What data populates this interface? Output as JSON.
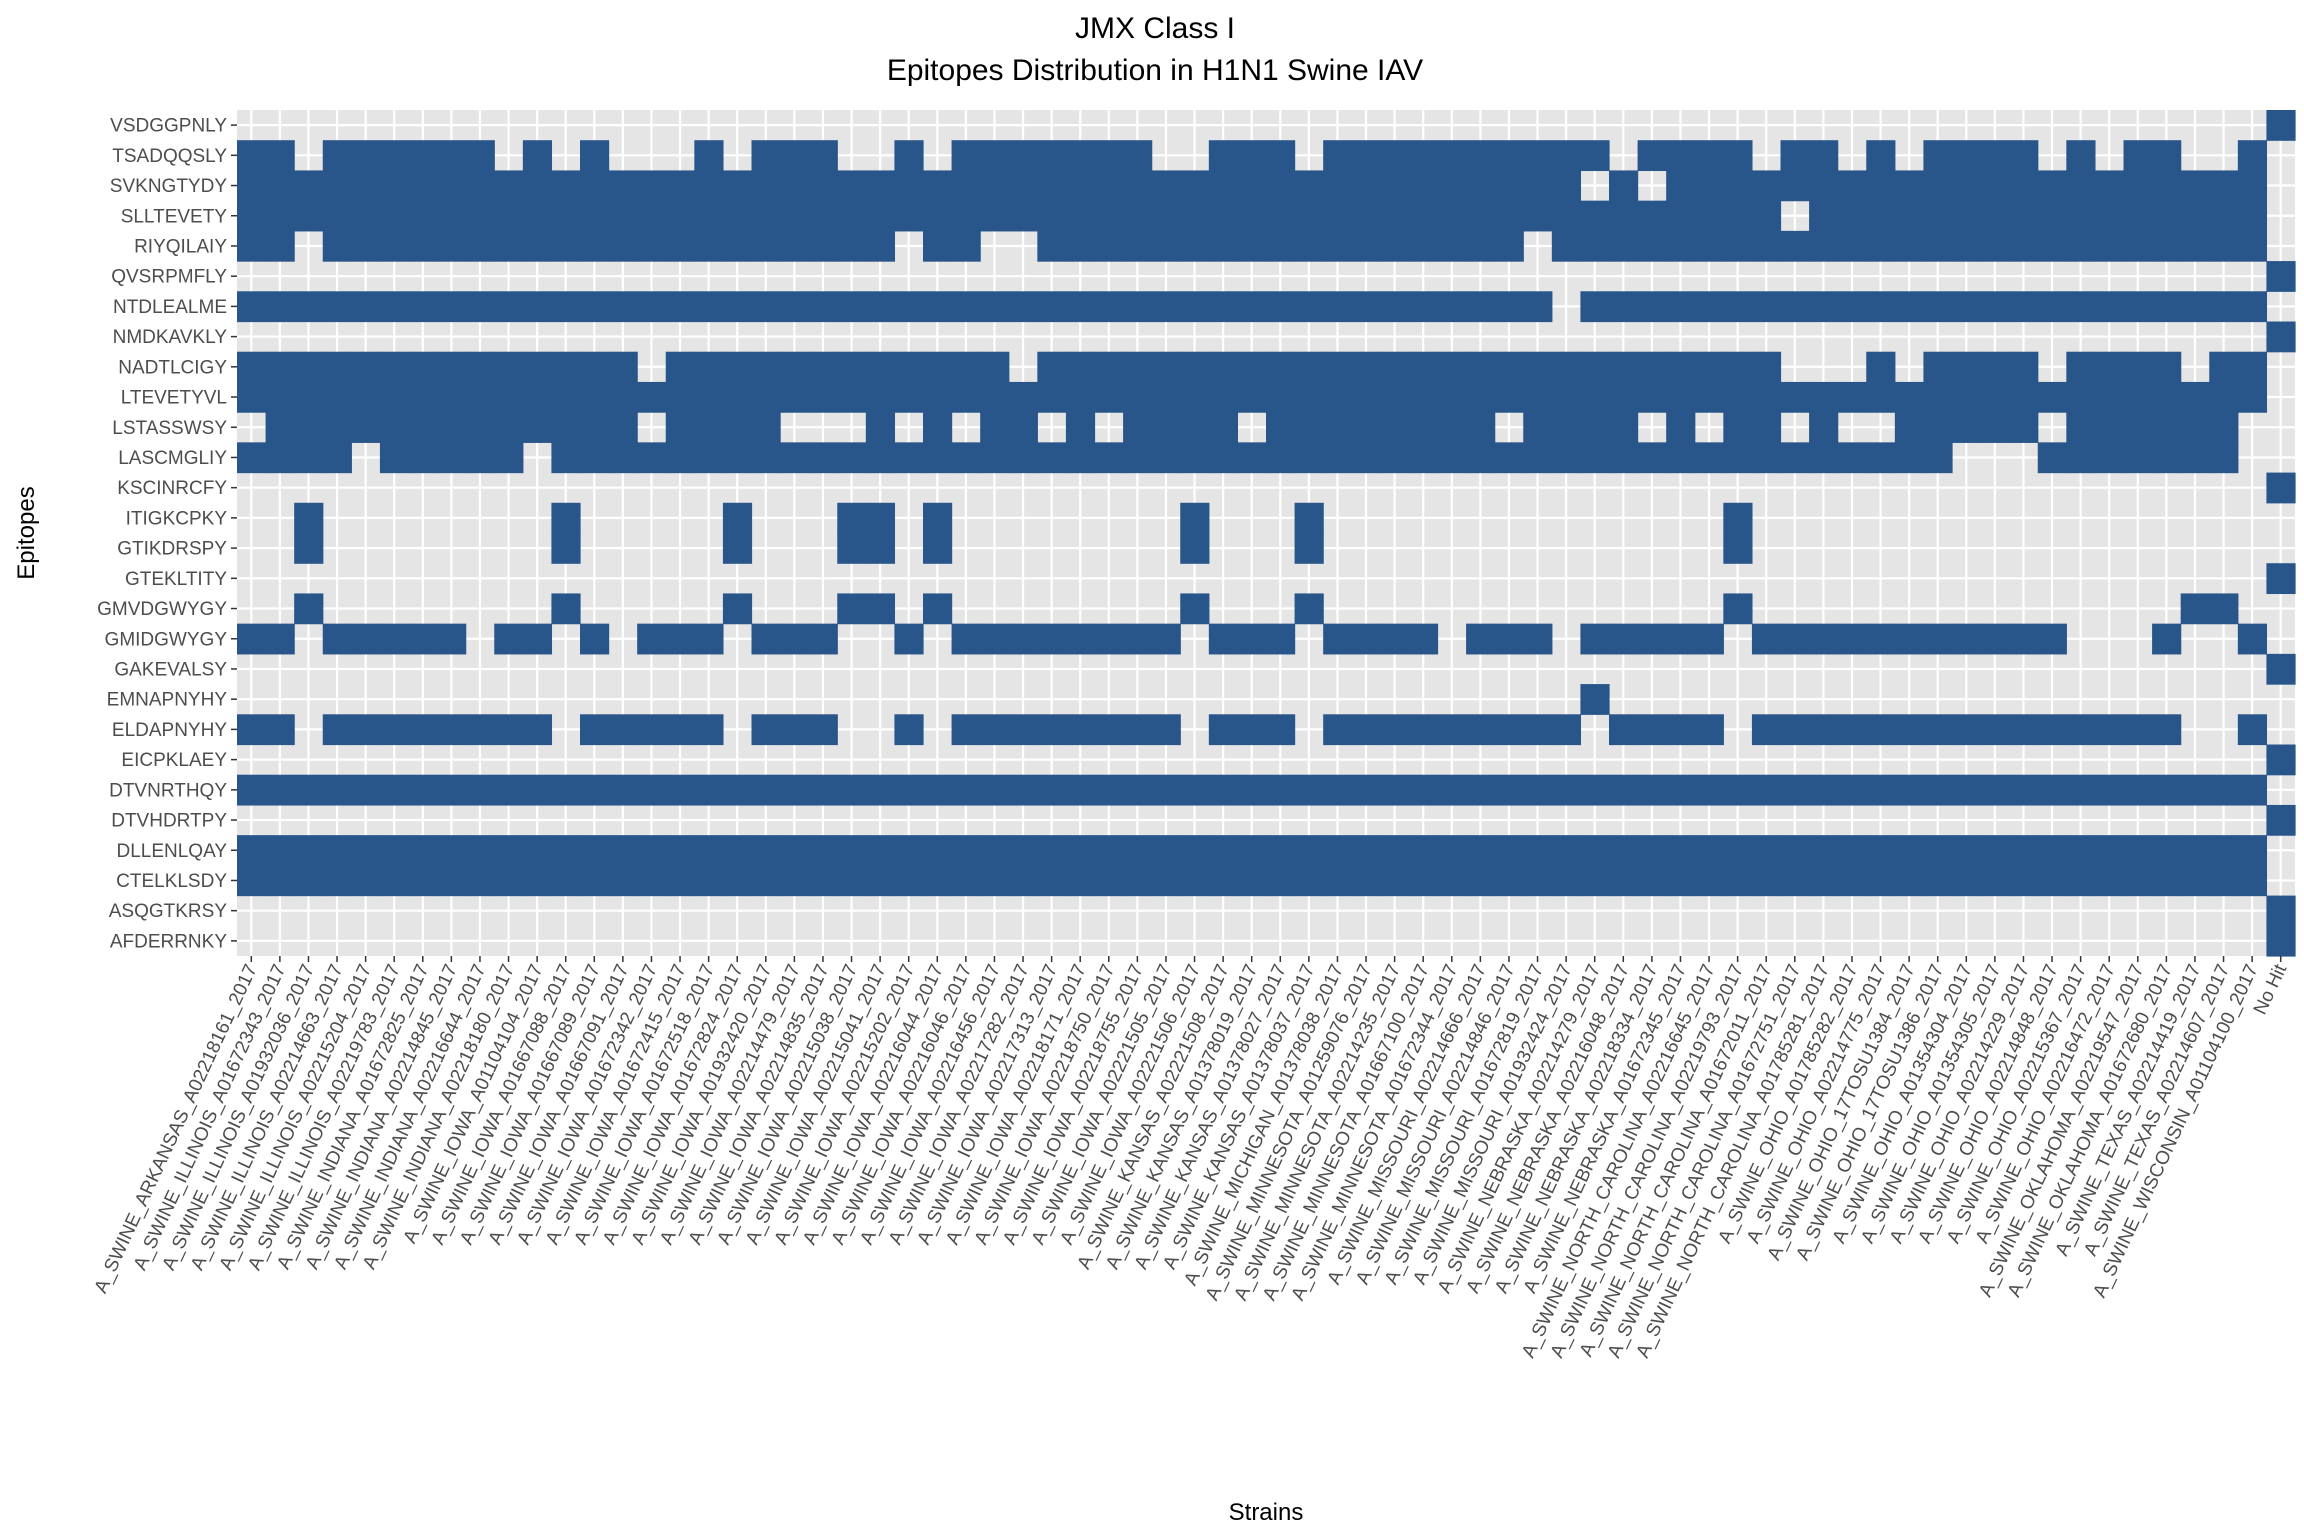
{
  "chart_data": {
    "type": "heatmap",
    "title": "JMX Class I",
    "subtitle": "Epitopes Distribution in H1N1 Swine IAV",
    "xlabel": "Strains",
    "ylabel": "Epitopes",
    "fill_color": "#29568a",
    "panel_color": "#e5e5e5",
    "grid": true,
    "legend": "none",
    "x": [
      "A_SWINE_ARKANSAS_A02218161_2017",
      "A_SWINE_ILLINOIS_A01672343_2017",
      "A_SWINE_ILLINOIS_A01932036_2017",
      "A_SWINE_ILLINOIS_A02214663_2017",
      "A_SWINE_ILLINOIS_A02215204_2017",
      "A_SWINE_ILLINOIS_A02219783_2017",
      "A_SWINE_INDIANA_A01672825_2017",
      "A_SWINE_INDIANA_A02214845_2017",
      "A_SWINE_INDIANA_A02216644_2017",
      "A_SWINE_INDIANA_A02218180_2017",
      "A_SWINE_IOWA_A01104104_2017",
      "A_SWINE_IOWA_A01667088_2017",
      "A_SWINE_IOWA_A01667089_2017",
      "A_SWINE_IOWA_A01667091_2017",
      "A_SWINE_IOWA_A01672342_2017",
      "A_SWINE_IOWA_A01672415_2017",
      "A_SWINE_IOWA_A01672518_2017",
      "A_SWINE_IOWA_A01672824_2017",
      "A_SWINE_IOWA_A01932420_2017",
      "A_SWINE_IOWA_A02214479_2017",
      "A_SWINE_IOWA_A02214835_2017",
      "A_SWINE_IOWA_A02215038_2017",
      "A_SWINE_IOWA_A02215041_2017",
      "A_SWINE_IOWA_A02215202_2017",
      "A_SWINE_IOWA_A02216044_2017",
      "A_SWINE_IOWA_A02216046_2017",
      "A_SWINE_IOWA_A02216456_2017",
      "A_SWINE_IOWA_A02217282_2017",
      "A_SWINE_IOWA_A02217313_2017",
      "A_SWINE_IOWA_A02218171_2017",
      "A_SWINE_IOWA_A02218750_2017",
      "A_SWINE_IOWA_A02218755_2017",
      "A_SWINE_IOWA_A02221505_2017",
      "A_SWINE_IOWA_A02221506_2017",
      "A_SWINE_KANSAS_A02221508_2017",
      "A_SWINE_KANSAS_A01378019_2017",
      "A_SWINE_KANSAS_A01378027_2017",
      "A_SWINE_KANSAS_A01378037_2017",
      "A_SWINE_MICHIGAN_A01378038_2017",
      "A_SWINE_MINNESOTA_A01259076_2017",
      "A_SWINE_MINNESOTA_A02214235_2017",
      "A_SWINE_MINNESOTA_A01667100_2017",
      "A_SWINE_MINNESOTA_A01672344_2017",
      "A_SWINE_MISSOURI_A02214666_2017",
      "A_SWINE_MISSOURI_A02214846_2017",
      "A_SWINE_MISSOURI_A01672819_2017",
      "A_SWINE_MISSOURI_A01932424_2017",
      "A_SWINE_NEBRASKA_A02214279_2017",
      "A_SWINE_NEBRASKA_A02216048_2017",
      "A_SWINE_NEBRASKA_A02218334_2017",
      "A_SWINE_NEBRASKA_A01672345_2017",
      "A_SWINE_NORTH_CAROLINA_A02216645_2017",
      "A_SWINE_NORTH_CAROLINA_A02219793_2017",
      "A_SWINE_NORTH_CAROLINA_A01672011_2017",
      "A_SWINE_NORTH_CAROLINA_A01672751_2017",
      "A_SWINE_NORTH_CAROLINA_A01785281_2017",
      "A_SWINE_OHIO_A01785282_2017",
      "A_SWINE_OHIO_A02214775_2017",
      "A_SWINE_OHIO_17TOSU1384_2017",
      "A_SWINE_OHIO_17TOSU1386_2017",
      "A_SWINE_OHIO_A01354304_2017",
      "A_SWINE_OHIO_A01354305_2017",
      "A_SWINE_OHIO_A02214229_2017",
      "A_SWINE_OHIO_A02214848_2017",
      "A_SWINE_OHIO_A02215367_2017",
      "A_SWINE_OHIO_A02216472_2017",
      "A_SWINE_OKLAHOMA_A02219547_2017",
      "A_SWINE_OKLAHOMA_A01672680_2017",
      "A_SWINE_TEXAS_A02214419_2017",
      "A_SWINE_TEXAS_A02214607_2017",
      "A_SWINE_WISCONSIN_A01104100_2017",
      "No Hit"
    ],
    "y": [
      "VSDGGPNLY",
      "TSADQQSLY",
      "SVKNGTYDY",
      "SLLTEVETY",
      "RIYQILAIY",
      "QVSRPMFLY",
      "NTDLEALME",
      "NMDKAVKLY",
      "NADTLCIGY",
      "LTEVETYVL",
      "LSTASSWSY",
      "LASCMGLIY",
      "KSCINRCFY",
      "ITIGKCPKY",
      "GTIKDRSPY",
      "GTEKLTITY",
      "GMVDGWYGY",
      "GMIDGWYGY",
      "GAKEVALSY",
      "EMNAPNYHY",
      "ELDAPNYHY",
      "EICPKLAEY",
      "DTVNRTHQY",
      "DTVHDRTPY",
      "DLLENLQAY",
      "CTELKLSDY",
      "ASQGTKRSY",
      "AFDERRNKY"
    ],
    "present": {
      "VSDGGPNLY": [
        [
          71,
          71
        ]
      ],
      "TSADQQSLY": [
        [
          0,
          1
        ],
        [
          3,
          8
        ],
        [
          10,
          10
        ],
        [
          12,
          12
        ],
        [
          16,
          16
        ],
        [
          18,
          20
        ],
        [
          23,
          23
        ],
        [
          25,
          31
        ],
        [
          34,
          36
        ],
        [
          38,
          47
        ],
        [
          49,
          52
        ],
        [
          54,
          55
        ],
        [
          57,
          57
        ],
        [
          59,
          62
        ],
        [
          64,
          64
        ],
        [
          66,
          67
        ],
        [
          70,
          70
        ]
      ],
      "SVKNGTYDY": [
        [
          0,
          46
        ],
        [
          48,
          48
        ],
        [
          50,
          70
        ]
      ],
      "SLLTEVETY": [
        [
          0,
          53
        ],
        [
          55,
          70
        ]
      ],
      "RIYQILAIY": [
        [
          0,
          1
        ],
        [
          3,
          22
        ],
        [
          24,
          25
        ],
        [
          28,
          44
        ],
        [
          46,
          70
        ]
      ],
      "QVSRPMFLY": [
        [
          71,
          71
        ]
      ],
      "NTDLEALME": [
        [
          0,
          45
        ],
        [
          47,
          70
        ]
      ],
      "NMDKAVKLY": [
        [
          71,
          71
        ]
      ],
      "NADTLCIGY": [
        [
          0,
          13
        ],
        [
          15,
          26
        ],
        [
          28,
          53
        ],
        [
          57,
          57
        ],
        [
          59,
          62
        ],
        [
          64,
          67
        ],
        [
          69,
          70
        ]
      ],
      "LTEVETYVL": [
        [
          0,
          70
        ]
      ],
      "LSTASSWSY": [
        [
          1,
          13
        ],
        [
          15,
          18
        ],
        [
          22,
          22
        ],
        [
          24,
          24
        ],
        [
          26,
          27
        ],
        [
          29,
          29
        ],
        [
          31,
          34
        ],
        [
          36,
          43
        ],
        [
          45,
          48
        ],
        [
          50,
          50
        ],
        [
          52,
          53
        ],
        [
          55,
          55
        ],
        [
          58,
          62
        ],
        [
          64,
          69
        ]
      ],
      "LASCMGLIY": [
        [
          0,
          3
        ],
        [
          5,
          9
        ],
        [
          11,
          59
        ],
        [
          63,
          69
        ]
      ],
      "KSCINRCFY": [
        [
          71,
          71
        ]
      ],
      "ITIGKCPKY": [
        [
          2,
          2
        ],
        [
          11,
          11
        ],
        [
          17,
          17
        ],
        [
          21,
          22
        ],
        [
          24,
          24
        ],
        [
          33,
          33
        ],
        [
          37,
          37
        ],
        [
          52,
          52
        ]
      ],
      "GTIKDRSPY": [
        [
          2,
          2
        ],
        [
          11,
          11
        ],
        [
          17,
          17
        ],
        [
          21,
          22
        ],
        [
          24,
          24
        ],
        [
          33,
          33
        ],
        [
          37,
          37
        ],
        [
          52,
          52
        ]
      ],
      "GTEKLTITY": [
        [
          71,
          71
        ]
      ],
      "GMVDGWYGY": [
        [
          2,
          2
        ],
        [
          11,
          11
        ],
        [
          17,
          17
        ],
        [
          21,
          22
        ],
        [
          24,
          24
        ],
        [
          33,
          33
        ],
        [
          37,
          37
        ],
        [
          52,
          52
        ],
        [
          68,
          69
        ]
      ],
      "GMIDGWYGY": [
        [
          0,
          1
        ],
        [
          3,
          7
        ],
        [
          9,
          10
        ],
        [
          12,
          12
        ],
        [
          14,
          16
        ],
        [
          18,
          20
        ],
        [
          23,
          23
        ],
        [
          25,
          32
        ],
        [
          34,
          36
        ],
        [
          38,
          41
        ],
        [
          43,
          45
        ],
        [
          47,
          51
        ],
        [
          53,
          63
        ],
        [
          67,
          67
        ],
        [
          70,
          70
        ]
      ],
      "GAKEVALSY": [
        [
          71,
          71
        ]
      ],
      "EMNAPNYHY": [
        [
          47,
          47
        ]
      ],
      "ELDAPNYHY": [
        [
          0,
          1
        ],
        [
          3,
          10
        ],
        [
          12,
          16
        ],
        [
          18,
          20
        ],
        [
          23,
          23
        ],
        [
          25,
          32
        ],
        [
          34,
          36
        ],
        [
          38,
          46
        ],
        [
          48,
          51
        ],
        [
          53,
          67
        ],
        [
          70,
          70
        ]
      ],
      "EICPKLAEY": [
        [
          71,
          71
        ]
      ],
      "DTVNRTHQY": [
        [
          0,
          70
        ]
      ],
      "DTVHDRTPY": [
        [
          71,
          71
        ]
      ],
      "DLLENLQAY": [
        [
          0,
          70
        ]
      ],
      "CTELKLSDY": [
        [
          0,
          70
        ]
      ],
      "ASQGTKRSY": [
        [
          71,
          71
        ]
      ],
      "AFDERRNKY": [
        [
          71,
          71
        ]
      ]
    }
  }
}
